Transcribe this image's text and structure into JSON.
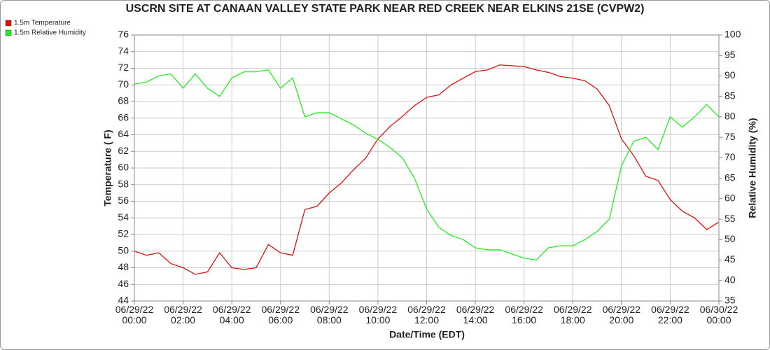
{
  "chart_data": {
    "type": "line",
    "title": "USCRN SITE AT CANAAN VALLEY STATE PARK NEAR RED CREEK NEAR ELKINS 21SE (CVPW2)",
    "xlabel": "Date/Time (EDT)",
    "ylabel": "Temperature ( F)",
    "y2label": "Relative Humidity (%)",
    "legend": "top-left",
    "grid": true,
    "x": [
      0,
      0.5,
      1,
      1.5,
      2,
      2.5,
      3,
      3.5,
      4,
      4.5,
      5,
      5.5,
      6,
      6.5,
      7,
      7.5,
      8,
      8.5,
      9,
      9.5,
      10,
      10.5,
      11,
      11.5,
      12,
      12.5,
      13,
      13.5,
      14,
      14.5,
      15,
      15.5,
      16,
      16.5,
      17,
      17.5,
      18,
      18.5,
      19,
      19.5,
      20,
      20.5,
      21,
      21.5,
      22,
      22.5,
      23,
      23.5,
      24
    ],
    "xlim": [
      0,
      24
    ],
    "xticks": [
      {
        "value": 0,
        "label": "06/29/22 00:00"
      },
      {
        "value": 2,
        "label": "06/29/22 02:00"
      },
      {
        "value": 4,
        "label": "06/29/22 04:00"
      },
      {
        "value": 6,
        "label": "06/29/22 06:00"
      },
      {
        "value": 8,
        "label": "06/29/22 08:00"
      },
      {
        "value": 10,
        "label": "06/29/22 10:00"
      },
      {
        "value": 12,
        "label": "06/29/22 12:00"
      },
      {
        "value": 14,
        "label": "06/29/22 14:00"
      },
      {
        "value": 16,
        "label": "06/29/22 16:00"
      },
      {
        "value": 18,
        "label": "06/29/22 18:00"
      },
      {
        "value": 20,
        "label": "06/29/22 20:00"
      },
      {
        "value": 22,
        "label": "06/29/22 22:00"
      },
      {
        "value": 24,
        "label": "06/30/22 00:00"
      }
    ],
    "ylim": [
      44,
      76
    ],
    "yticks": [
      44,
      46,
      48,
      50,
      52,
      54,
      56,
      58,
      60,
      62,
      64,
      66,
      68,
      70,
      72,
      74,
      76
    ],
    "y2lim": [
      35,
      100
    ],
    "y2ticks": [
      35,
      40,
      45,
      50,
      55,
      60,
      65,
      70,
      75,
      80,
      85,
      90,
      95,
      100
    ],
    "series": [
      {
        "name": "1.5m Temperature",
        "color": "#dd1111",
        "values": [
          50.0,
          49.5,
          49.8,
          48.5,
          48.0,
          47.2,
          47.5,
          49.8,
          48.0,
          47.8,
          48.0,
          50.8,
          49.8,
          49.5,
          55.0,
          55.4,
          57.0,
          58.2,
          59.8,
          61.2,
          63.5,
          65.0,
          66.2,
          67.5,
          68.5,
          68.8,
          70.0,
          70.8,
          71.6,
          71.8,
          72.4,
          72.3,
          72.2,
          71.8,
          71.5,
          71.0,
          70.8,
          70.5,
          69.5,
          67.5,
          63.5,
          61.5,
          59.0,
          58.5,
          56.2,
          54.8,
          54.0,
          52.6,
          53.5
        ]
      },
      {
        "name": "1.5m Relative Humidity",
        "color": "#22ee22",
        "axis": "y2",
        "values": [
          88,
          88.5,
          90,
          90.5,
          87,
          90.5,
          87,
          85,
          89.5,
          91,
          91,
          91.5,
          87,
          89.5,
          80,
          81,
          81,
          79.5,
          78,
          76,
          74.5,
          72.5,
          70,
          65,
          57.5,
          53,
          51,
          50,
          48,
          47.5,
          47.5,
          46.5,
          45.5,
          45,
          48,
          48.5,
          48.5,
          50,
          52,
          55,
          68,
          74,
          75,
          72,
          80,
          77.5,
          80,
          83,
          80
        ]
      }
    ]
  }
}
